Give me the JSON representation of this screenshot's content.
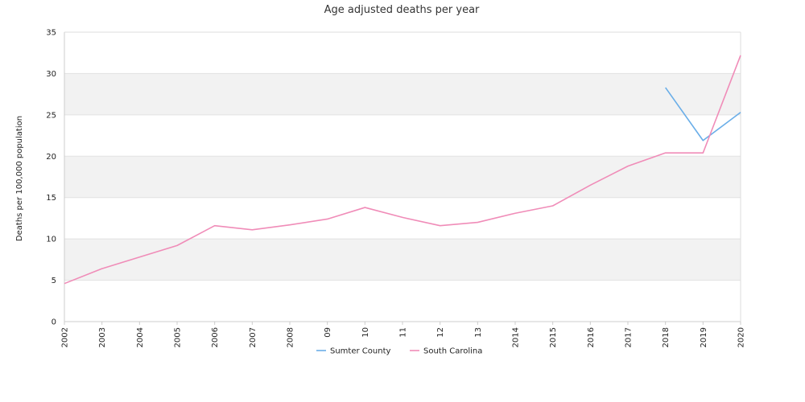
{
  "chart_data": {
    "type": "line",
    "title": "Age adjusted deaths per year",
    "xlabel": "",
    "ylabel": "Deaths per 100,000 population",
    "x": [
      "2002",
      "2003",
      "2004",
      "2005",
      "2006",
      "2007",
      "2008",
      "09",
      "10",
      "11",
      "12",
      "13",
      "2014",
      "2015",
      "2016",
      "2017",
      "2018",
      "2019",
      "2020"
    ],
    "ylim": [
      0,
      35
    ],
    "yticks": [
      0,
      5,
      10,
      15,
      20,
      25,
      30,
      35
    ],
    "grid": "alternating horizontal bands",
    "legend_position": "bottom",
    "series": [
      {
        "name": "Sumter County",
        "color": "#6aaee8",
        "values": [
          null,
          null,
          null,
          null,
          null,
          null,
          null,
          null,
          null,
          null,
          null,
          null,
          null,
          null,
          null,
          null,
          28.3,
          21.9,
          25.3
        ]
      },
      {
        "name": "South Carolina",
        "color": "#f08cb8",
        "values": [
          4.6,
          6.4,
          7.8,
          9.2,
          11.6,
          11.1,
          11.7,
          12.4,
          13.8,
          12.6,
          11.6,
          12.0,
          13.1,
          14.0,
          16.5,
          18.8,
          20.4,
          20.4,
          32.2
        ]
      }
    ]
  }
}
